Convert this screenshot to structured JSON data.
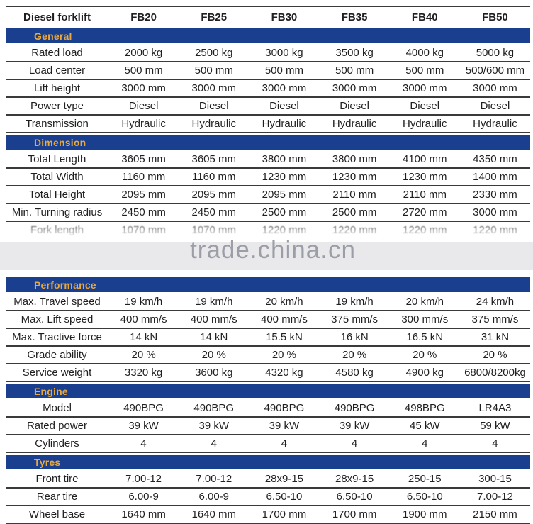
{
  "table": {
    "header": {
      "label": "Diesel forklift",
      "models": [
        "FB20",
        "FB25",
        "FB30",
        "FB35",
        "FB40",
        "FB50"
      ]
    },
    "sections": [
      {
        "title": "General",
        "rows": [
          {
            "label": "Rated load",
            "values": [
              "2000 kg",
              "2500 kg",
              "3000 kg",
              "3500 kg",
              "4000 kg",
              "5000 kg"
            ]
          },
          {
            "label": "Load center",
            "values": [
              "500 mm",
              "500 mm",
              "500 mm",
              "500 mm",
              "500 mm",
              "500/600 mm"
            ]
          },
          {
            "label": "Lift height",
            "values": [
              "3000 mm",
              "3000 mm",
              "3000 mm",
              "3000 mm",
              "3000 mm",
              "3000 mm"
            ]
          },
          {
            "label": "Power type",
            "values": [
              "Diesel",
              "Diesel",
              "Diesel",
              "Diesel",
              "Diesel",
              "Diesel"
            ]
          },
          {
            "label": "Transmission",
            "values": [
              "Hydraulic",
              "Hydraulic",
              "Hydraulic",
              "Hydraulic",
              "Hydraulic",
              "Hydraulic"
            ]
          }
        ]
      },
      {
        "title": "Dimension",
        "watermark_after": true,
        "rows": [
          {
            "label": "Total Length",
            "values": [
              "3605 mm",
              "3605 mm",
              "3800 mm",
              "3800 mm",
              "4100 mm",
              "4350 mm"
            ]
          },
          {
            "label": "Total Width",
            "values": [
              "1160 mm",
              "1160 mm",
              "1230 mm",
              "1230 mm",
              "1230 mm",
              "1400 mm"
            ]
          },
          {
            "label": "Total Height",
            "values": [
              "2095 mm",
              "2095 mm",
              "2095 mm",
              "2110 mm",
              "2110 mm",
              "2330 mm"
            ]
          },
          {
            "label": "Min. Turning radius",
            "values": [
              "2450 mm",
              "2450 mm",
              "2500 mm",
              "2500 mm",
              "2720 mm",
              "3000 mm"
            ]
          },
          {
            "label": "Fork length",
            "values": [
              "1070 mm",
              "1070 mm",
              "1220 mm",
              "1220 mm",
              "1220 mm",
              "1220 mm"
            ],
            "faded": true
          }
        ]
      },
      {
        "title": "Performance",
        "rows": [
          {
            "label": "Max. Travel speed",
            "values": [
              "19 km/h",
              "19 km/h",
              "20 km/h",
              "19 km/h",
              "20 km/h",
              "24 km/h"
            ]
          },
          {
            "label": "Max. Lift speed",
            "values": [
              "400 mm/s",
              "400 mm/s",
              "400 mm/s",
              "375 mm/s",
              "300 mm/s",
              "375 mm/s"
            ]
          },
          {
            "label": "Max. Tractive force",
            "values": [
              "14 kN",
              "14 kN",
              "15.5 kN",
              "16 kN",
              "16.5 kN",
              "31 kN"
            ]
          },
          {
            "label": "Grade ability",
            "values": [
              "20 %",
              "20 %",
              "20 %",
              "20 %",
              "20 %",
              "20 %"
            ]
          },
          {
            "label": "Service weight",
            "values": [
              "3320 kg",
              "3600 kg",
              "4320 kg",
              "4580 kg",
              "4900 kg",
              "6800/8200kg"
            ]
          }
        ]
      },
      {
        "title": "Engine",
        "rows": [
          {
            "label": "Model",
            "values": [
              "490BPG",
              "490BPG",
              "490BPG",
              "490BPG",
              "498BPG",
              "LR4A3"
            ]
          },
          {
            "label": "Rated power",
            "values": [
              "39 kW",
              "39 kW",
              "39 kW",
              "39 kW",
              "45 kW",
              "59 kW"
            ]
          },
          {
            "label": "Cylinders",
            "values": [
              "4",
              "4",
              "4",
              "4",
              "4",
              "4"
            ]
          }
        ]
      },
      {
        "title": "Tyres",
        "rows": [
          {
            "label": "Front tire",
            "values": [
              "7.00-12",
              "7.00-12",
              "28x9-15",
              "28x9-15",
              "250-15",
              "300-15"
            ]
          },
          {
            "label": "Rear tire",
            "values": [
              "6.00-9",
              "6.00-9",
              "6.50-10",
              "6.50-10",
              "6.50-10",
              "7.00-12"
            ]
          },
          {
            "label": "Wheel base",
            "values": [
              "1640 mm",
              "1640 mm",
              "1700 mm",
              "1700 mm",
              "1900 mm",
              "2150 mm"
            ]
          }
        ]
      }
    ]
  },
  "watermark": {
    "text": "trade.china.cn"
  },
  "colors": {
    "band_bg": "#193f8e",
    "band_text": "#eaa93c",
    "row_line": "#3a3a3a",
    "watermark_bg": "#e9e9ec",
    "watermark_text": "#9b9ea6"
  }
}
